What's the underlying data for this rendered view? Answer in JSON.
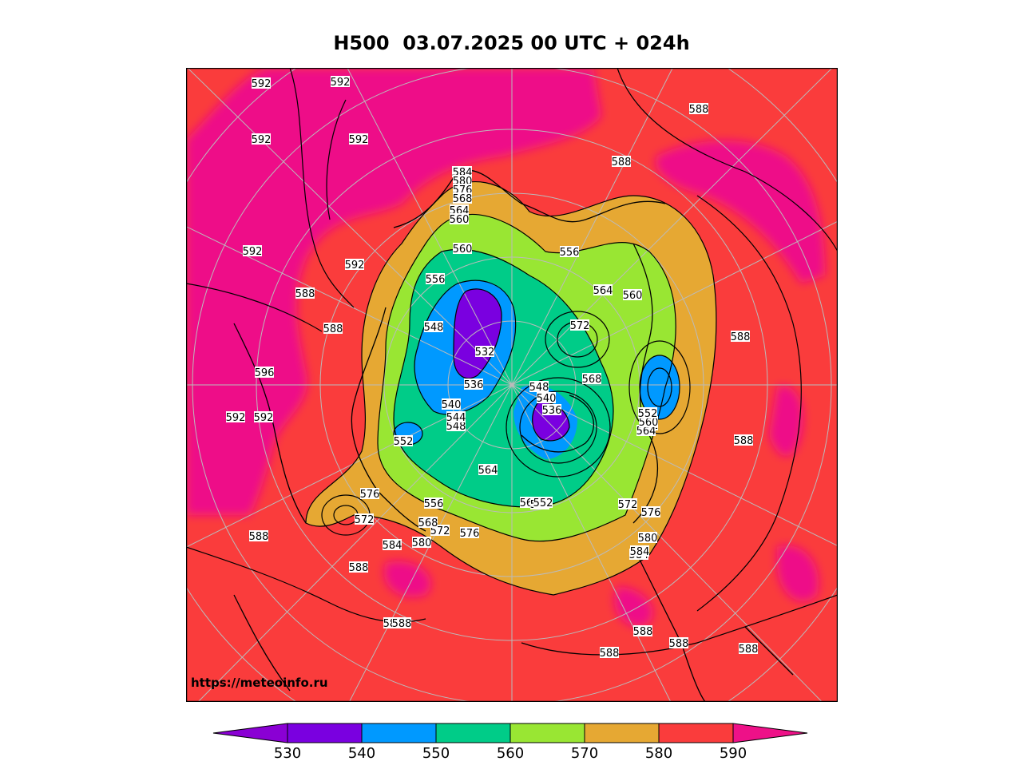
{
  "title": "H500  03.07.2025 00 UTC + 024h",
  "watermark": "https://meteoinfo.ru",
  "colorbar": {
    "ticks": [
      "530",
      "540",
      "550",
      "560",
      "570",
      "580",
      "590"
    ],
    "colors": [
      "#8a00d4",
      "#7a00e0",
      "#0099ff",
      "#00cc88",
      "#99e633",
      "#e6a833",
      "#fa3c3c",
      "#ee1188"
    ]
  },
  "contour_labels": [
    "592",
    "592",
    "592",
    "592",
    "592",
    "588",
    "588",
    "588",
    "596",
    "592",
    "588",
    "588",
    "588",
    "588",
    "588",
    "588",
    "588",
    "588",
    "588",
    "584",
    "584",
    "584",
    "580",
    "580",
    "576",
    "576",
    "576",
    "572",
    "572",
    "572",
    "572",
    "568",
    "568",
    "564",
    "564",
    "560",
    "560",
    "560",
    "556",
    "556",
    "556",
    "556",
    "552",
    "552",
    "552",
    "552",
    "548",
    "548",
    "548",
    "544",
    "540",
    "540",
    "536",
    "536",
    "532",
    "584",
    "580",
    "576",
    "572",
    "568",
    "564",
    "560",
    "588",
    "588",
    "564",
    "560",
    "552",
    "584",
    "592",
    "592"
  ]
}
